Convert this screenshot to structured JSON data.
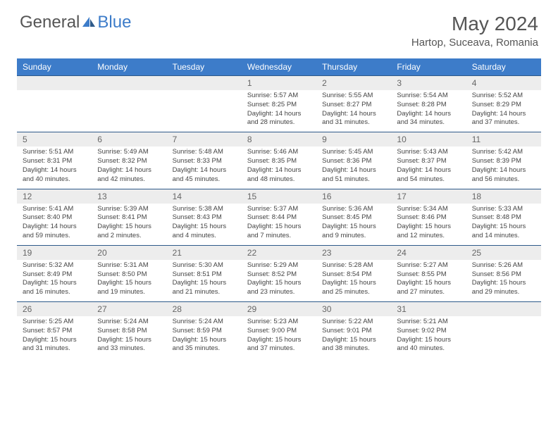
{
  "logo": {
    "text1": "General",
    "text2": "Blue"
  },
  "title": "May 2024",
  "location": "Hartop, Suceava, Romania",
  "colors": {
    "header_bg": "#3d7cc9",
    "numrow_bg": "#ededed",
    "border": "#2e5a8a",
    "text": "#555"
  },
  "day_headers": [
    "Sunday",
    "Monday",
    "Tuesday",
    "Wednesday",
    "Thursday",
    "Friday",
    "Saturday"
  ],
  "weeks": [
    {
      "nums": [
        "",
        "",
        "",
        "1",
        "2",
        "3",
        "4"
      ],
      "cells": [
        null,
        null,
        null,
        {
          "sunrise": "5:57 AM",
          "sunset": "8:25 PM",
          "day_h": 14,
          "day_m": 28
        },
        {
          "sunrise": "5:55 AM",
          "sunset": "8:27 PM",
          "day_h": 14,
          "day_m": 31
        },
        {
          "sunrise": "5:54 AM",
          "sunset": "8:28 PM",
          "day_h": 14,
          "day_m": 34
        },
        {
          "sunrise": "5:52 AM",
          "sunset": "8:29 PM",
          "day_h": 14,
          "day_m": 37
        }
      ]
    },
    {
      "nums": [
        "5",
        "6",
        "7",
        "8",
        "9",
        "10",
        "11"
      ],
      "cells": [
        {
          "sunrise": "5:51 AM",
          "sunset": "8:31 PM",
          "day_h": 14,
          "day_m": 40
        },
        {
          "sunrise": "5:49 AM",
          "sunset": "8:32 PM",
          "day_h": 14,
          "day_m": 42
        },
        {
          "sunrise": "5:48 AM",
          "sunset": "8:33 PM",
          "day_h": 14,
          "day_m": 45
        },
        {
          "sunrise": "5:46 AM",
          "sunset": "8:35 PM",
          "day_h": 14,
          "day_m": 48
        },
        {
          "sunrise": "5:45 AM",
          "sunset": "8:36 PM",
          "day_h": 14,
          "day_m": 51
        },
        {
          "sunrise": "5:43 AM",
          "sunset": "8:37 PM",
          "day_h": 14,
          "day_m": 54
        },
        {
          "sunrise": "5:42 AM",
          "sunset": "8:39 PM",
          "day_h": 14,
          "day_m": 56
        }
      ]
    },
    {
      "nums": [
        "12",
        "13",
        "14",
        "15",
        "16",
        "17",
        "18"
      ],
      "cells": [
        {
          "sunrise": "5:41 AM",
          "sunset": "8:40 PM",
          "day_h": 14,
          "day_m": 59
        },
        {
          "sunrise": "5:39 AM",
          "sunset": "8:41 PM",
          "day_h": 15,
          "day_m": 2
        },
        {
          "sunrise": "5:38 AM",
          "sunset": "8:43 PM",
          "day_h": 15,
          "day_m": 4
        },
        {
          "sunrise": "5:37 AM",
          "sunset": "8:44 PM",
          "day_h": 15,
          "day_m": 7
        },
        {
          "sunrise": "5:36 AM",
          "sunset": "8:45 PM",
          "day_h": 15,
          "day_m": 9
        },
        {
          "sunrise": "5:34 AM",
          "sunset": "8:46 PM",
          "day_h": 15,
          "day_m": 12
        },
        {
          "sunrise": "5:33 AM",
          "sunset": "8:48 PM",
          "day_h": 15,
          "day_m": 14
        }
      ]
    },
    {
      "nums": [
        "19",
        "20",
        "21",
        "22",
        "23",
        "24",
        "25"
      ],
      "cells": [
        {
          "sunrise": "5:32 AM",
          "sunset": "8:49 PM",
          "day_h": 15,
          "day_m": 16
        },
        {
          "sunrise": "5:31 AM",
          "sunset": "8:50 PM",
          "day_h": 15,
          "day_m": 19
        },
        {
          "sunrise": "5:30 AM",
          "sunset": "8:51 PM",
          "day_h": 15,
          "day_m": 21
        },
        {
          "sunrise": "5:29 AM",
          "sunset": "8:52 PM",
          "day_h": 15,
          "day_m": 23
        },
        {
          "sunrise": "5:28 AM",
          "sunset": "8:54 PM",
          "day_h": 15,
          "day_m": 25
        },
        {
          "sunrise": "5:27 AM",
          "sunset": "8:55 PM",
          "day_h": 15,
          "day_m": 27
        },
        {
          "sunrise": "5:26 AM",
          "sunset": "8:56 PM",
          "day_h": 15,
          "day_m": 29
        }
      ]
    },
    {
      "nums": [
        "26",
        "27",
        "28",
        "29",
        "30",
        "31",
        ""
      ],
      "cells": [
        {
          "sunrise": "5:25 AM",
          "sunset": "8:57 PM",
          "day_h": 15,
          "day_m": 31
        },
        {
          "sunrise": "5:24 AM",
          "sunset": "8:58 PM",
          "day_h": 15,
          "day_m": 33
        },
        {
          "sunrise": "5:24 AM",
          "sunset": "8:59 PM",
          "day_h": 15,
          "day_m": 35
        },
        {
          "sunrise": "5:23 AM",
          "sunset": "9:00 PM",
          "day_h": 15,
          "day_m": 37
        },
        {
          "sunrise": "5:22 AM",
          "sunset": "9:01 PM",
          "day_h": 15,
          "day_m": 38
        },
        {
          "sunrise": "5:21 AM",
          "sunset": "9:02 PM",
          "day_h": 15,
          "day_m": 40
        },
        null
      ]
    }
  ]
}
